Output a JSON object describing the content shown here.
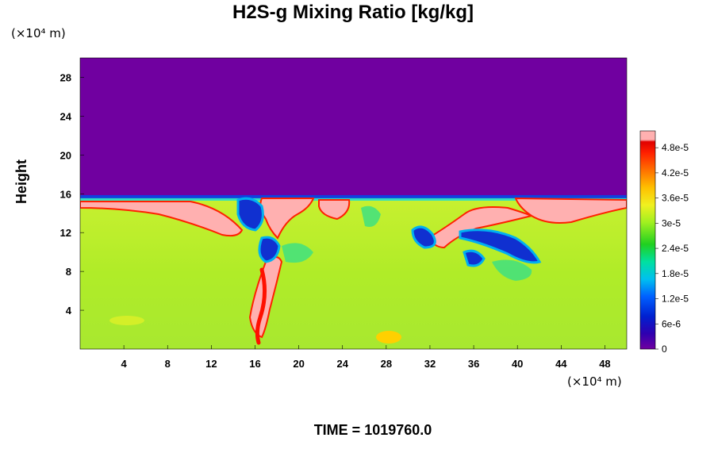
{
  "chart_data": {
    "type": "heatmap",
    "title": "H2S-g Mixing Ratio [kg/kg]",
    "xlabel_unit": "(×10⁴ m)",
    "ylabel": "Height",
    "ylabel_unit": "(×10⁴ m)",
    "x_ticks": [
      "4",
      "8",
      "12",
      "16",
      "20",
      "24",
      "28",
      "32",
      "36",
      "40",
      "44",
      "48"
    ],
    "y_ticks": [
      "4",
      "8",
      "12",
      "16",
      "20",
      "24",
      "28"
    ],
    "xlim": [
      0,
      50
    ],
    "ylim": [
      0,
      30
    ],
    "colorbar": {
      "ticks": [
        "0",
        "6e-6",
        "1.2e-5",
        "1.8e-5",
        "2.4e-5",
        "3e-5",
        "3.6e-5",
        "4.2e-5",
        "4.8e-5"
      ],
      "range": [
        0,
        5.2e-05
      ]
    },
    "layer_top_height": 15.7,
    "upper_region_value": 0,
    "lower_region_typical_value": 3.1e-05,
    "footer": "TIME = 1019760.0",
    "colors": {
      "empty": "#7000a0",
      "high": "#ffb0b0",
      "typical": "#b4f020"
    }
  }
}
